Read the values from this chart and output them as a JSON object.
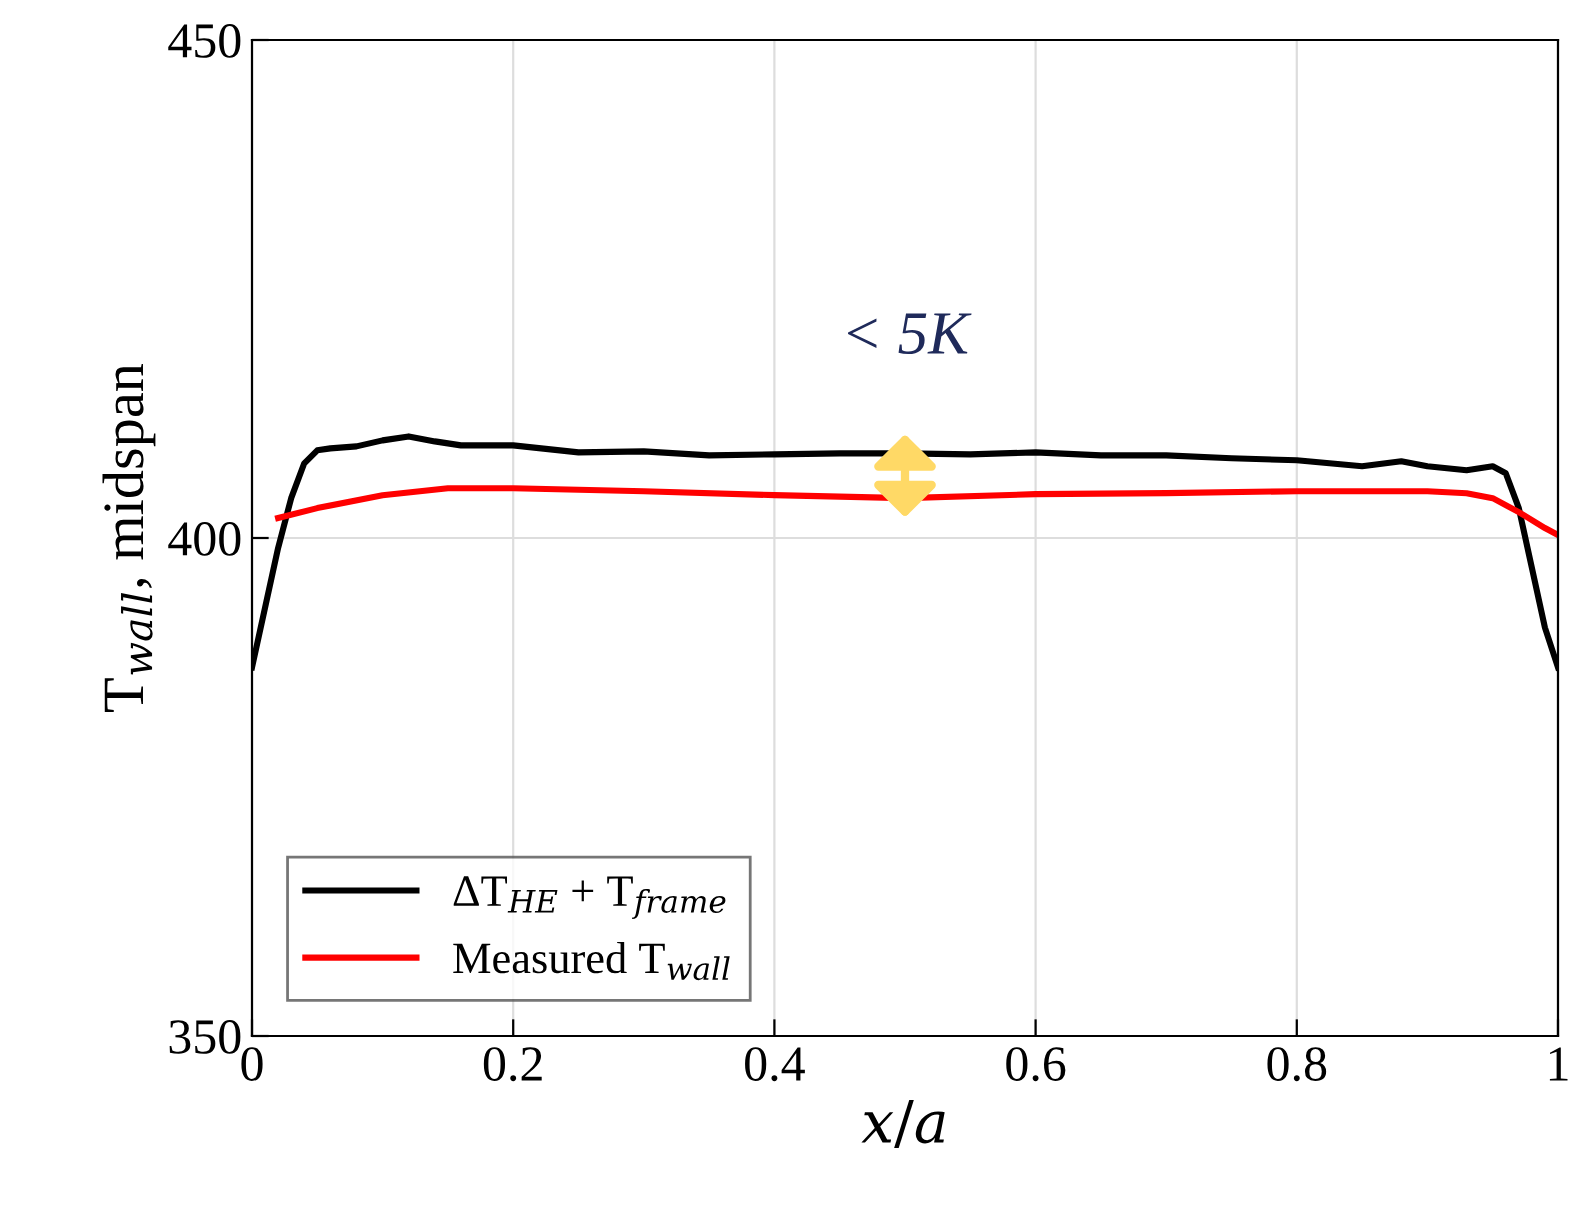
{
  "chart_data": {
    "type": "line",
    "xlabel": "x/a",
    "ylabel": "T$_{wall}$, midspan",
    "xlim": [
      0,
      1
    ],
    "ylim": [
      350,
      450
    ],
    "xticks": [
      0,
      0.2,
      0.4,
      0.6,
      0.8,
      1
    ],
    "yticks": [
      350,
      400,
      450
    ],
    "grid": true,
    "legend": "bottom left",
    "line_style": "solid",
    "marker": "none",
    "series": [
      {
        "name": "ΔT$_{HE}$ + T$_{frame}$",
        "color": "#000000",
        "x": [
          0,
          0.01,
          0.02,
          0.03,
          0.04,
          0.05,
          0.06,
          0.08,
          0.1,
          0.12,
          0.14,
          0.16,
          0.2,
          0.25,
          0.3,
          0.35,
          0.4,
          0.45,
          0.5,
          0.55,
          0.6,
          0.65,
          0.7,
          0.75,
          0.8,
          0.85,
          0.88,
          0.9,
          0.93,
          0.95,
          0.96,
          0.97,
          0.98,
          0.99,
          1
        ],
        "values": [
          387,
          393,
          399,
          404,
          407.5,
          408.8,
          409,
          409.2,
          409.8,
          410.2,
          409.7,
          409.3,
          409.3,
          408.6,
          408.7,
          408.3,
          408.4,
          408.5,
          408.5,
          408.4,
          408.6,
          408.3,
          408.3,
          408,
          407.8,
          407.2,
          407.7,
          407.2,
          406.8,
          407.2,
          406.5,
          403,
          397,
          391,
          387
        ]
      },
      {
        "name": "Measured T$_{wall}$",
        "color": "#ff0000",
        "x": [
          0.02,
          0.05,
          0.1,
          0.15,
          0.2,
          0.3,
          0.4,
          0.5,
          0.6,
          0.7,
          0.8,
          0.9,
          0.93,
          0.95,
          0.97,
          0.99,
          1
        ],
        "values": [
          402,
          403,
          404.3,
          405,
          405,
          404.7,
          404.3,
          404,
          404.4,
          404.5,
          404.7,
          404.7,
          404.5,
          404,
          402.6,
          401,
          400.3
        ]
      }
    ],
    "annotations": [
      {
        "text": "< 5K",
        "x": 0.5,
        "y": 406
      }
    ]
  }
}
